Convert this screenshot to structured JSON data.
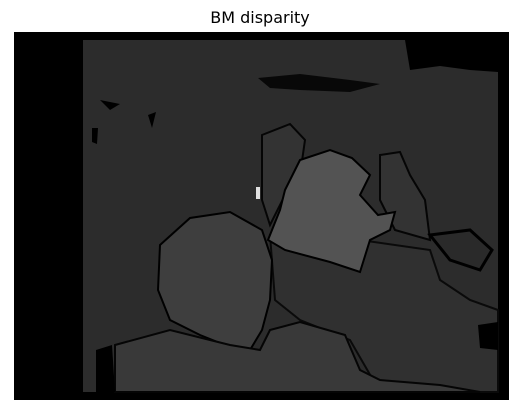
{
  "title": "BM disparity"
}
